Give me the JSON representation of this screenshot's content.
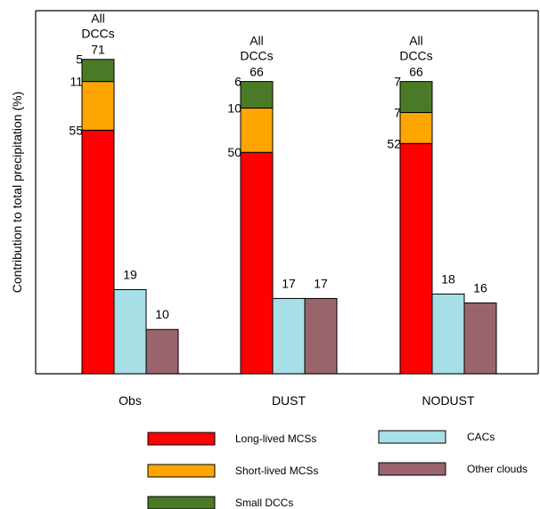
{
  "chart_data": {
    "type": "bar",
    "title": "",
    "xlabel": "",
    "ylabel": "Contribution to total precipitation (%)",
    "ylim": [
      0,
      82
    ],
    "categories": [
      "Obs",
      "DUST",
      "NODUST"
    ],
    "stack_header_lines": [
      "All",
      "DCCs"
    ],
    "stacked": {
      "totals": [
        71,
        66,
        66
      ],
      "segments": [
        {
          "name": "Long-lived MCSs",
          "color": "#ff0000",
          "values": [
            55,
            50,
            52
          ]
        },
        {
          "name": "Short-lived MCSs",
          "color": "#ffa500",
          "values": [
            11,
            10,
            7
          ]
        },
        {
          "name": "Small DCCs",
          "color": "#4a7a26",
          "values": [
            5,
            6,
            7
          ]
        }
      ]
    },
    "side_series": [
      {
        "name": "CACs",
        "color": "#a6dfe6",
        "values": [
          19,
          17,
          18
        ]
      },
      {
        "name": "Other clouds",
        "color": "#9a646c",
        "values": [
          10,
          17,
          16
        ]
      }
    ],
    "legend": {
      "placement": "bottom",
      "items": [
        {
          "label": "Long-lived MCSs",
          "color": "#ff0000"
        },
        {
          "label": "Short-lived MCSs",
          "color": "#ffa500"
        },
        {
          "label": "Small DCCs",
          "color": "#4a7a26"
        },
        {
          "label": "CACs",
          "color": "#a6dfe6"
        },
        {
          "label": "Other clouds",
          "color": "#9a646c"
        }
      ]
    },
    "grid": false
  }
}
